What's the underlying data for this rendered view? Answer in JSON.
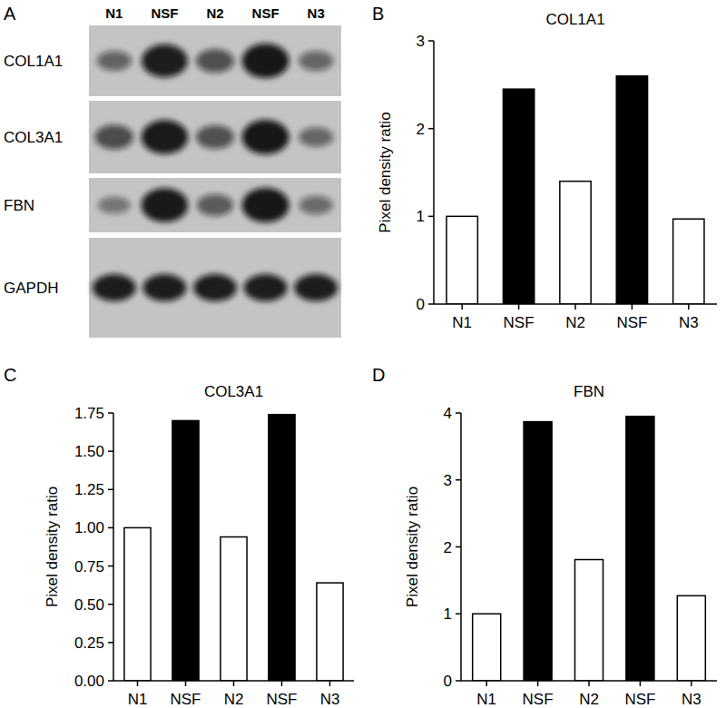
{
  "blot": {
    "annotations": [
      "A"
    ],
    "lanes": [
      "N1",
      "NSF",
      "N2",
      "NSF",
      "N3"
    ],
    "rows": [
      "COL1A1",
      "COL3A1",
      "FBN",
      "GAPDH"
    ]
  },
  "chart_data": [
    {
      "type": "bar",
      "title": "COL1A1",
      "annotations": [
        "B"
      ],
      "y_label": "Pixel density ratio",
      "categories": [
        "N1",
        "NSF",
        "N2",
        "NSF",
        "N3"
      ],
      "values": [
        1.0,
        2.45,
        1.4,
        2.6,
        0.97
      ],
      "colors": [
        "#ffffff",
        "#000000",
        "#ffffff",
        "#000000",
        "#ffffff"
      ],
      "ylim": [
        0,
        3
      ],
      "yticks": [
        0,
        1,
        2,
        3
      ],
      "grid": false
    },
    {
      "type": "bar",
      "title": "COL3A1",
      "annotations": [
        "C"
      ],
      "y_label": "Pixel density ratio",
      "categories": [
        "N1",
        "NSF",
        "N2",
        "NSF",
        "N3"
      ],
      "values": [
        1.0,
        1.7,
        0.94,
        1.74,
        0.64
      ],
      "colors": [
        "#ffffff",
        "#000000",
        "#ffffff",
        "#000000",
        "#ffffff"
      ],
      "ylim": [
        0,
        1.75
      ],
      "yticks": [
        {
          "value": 0,
          "label": "0.00"
        },
        {
          "value": 0.25,
          "label": "0.25"
        },
        {
          "value": 0.5,
          "label": "0.50"
        },
        {
          "value": 0.75,
          "label": "0.75"
        },
        {
          "value": 1,
          "label": "1.00"
        },
        {
          "value": 1.25,
          "label": "1.25"
        },
        {
          "value": 1.5,
          "label": "1.50"
        },
        {
          "value": 1.75,
          "label": "1.75"
        }
      ],
      "grid": false
    },
    {
      "type": "bar",
      "title": "FBN",
      "annotations": [
        "D"
      ],
      "y_label": "Pixel density ratio",
      "categories": [
        "N1",
        "NSF",
        "N2",
        "NSF",
        "N3"
      ],
      "values": [
        1.0,
        3.87,
        1.81,
        3.95,
        1.27
      ],
      "colors": [
        "#ffffff",
        "#000000",
        "#ffffff",
        "#000000",
        "#ffffff"
      ],
      "ylim": [
        0,
        4
      ],
      "yticks": [
        0,
        1,
        2,
        3,
        4
      ],
      "grid": false
    }
  ]
}
